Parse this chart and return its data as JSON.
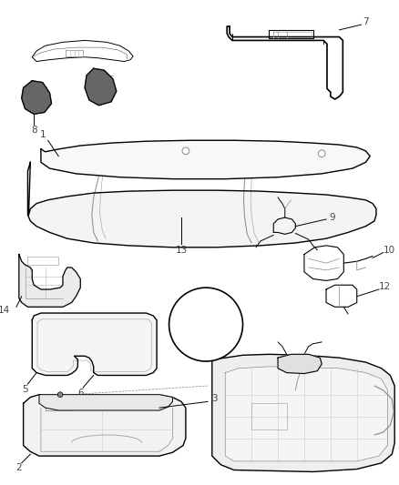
{
  "background_color": "#ffffff",
  "fig_width": 4.38,
  "fig_height": 5.33,
  "dpi": 100,
  "line_color": "#000000",
  "label_fontsize": 7.5,
  "label_color": "#444444"
}
